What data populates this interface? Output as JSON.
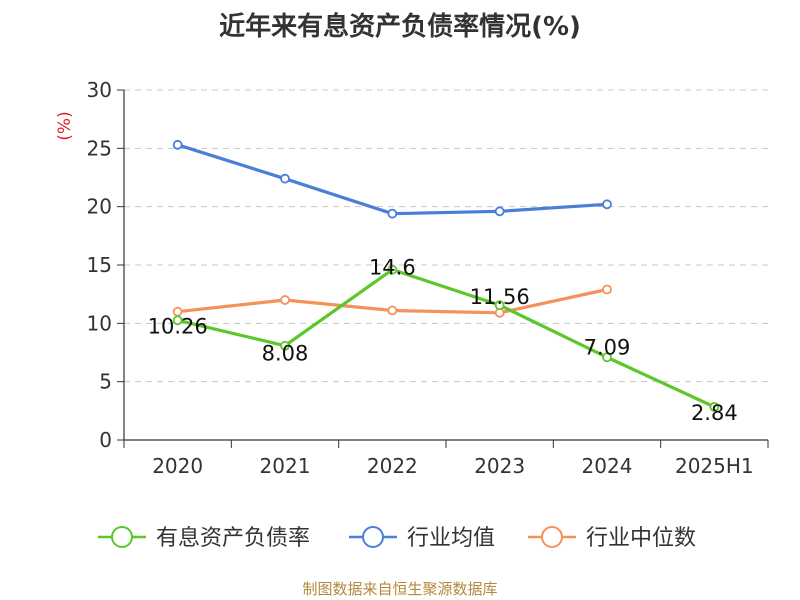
{
  "title": "近年来有息资产负债率情况(%)",
  "source": "制图数据来自恒生聚源数据库",
  "chart_data": {
    "type": "line",
    "title": "近年来有息资产负债率情况(%)",
    "ylabel": "(%)",
    "xlabel": "",
    "ylim": [
      0,
      30
    ],
    "yticks": [
      "0",
      "5",
      "10",
      "15",
      "20",
      "25",
      "30"
    ],
    "categories": [
      "2020",
      "2021",
      "2022",
      "2023",
      "2024",
      "2025H1"
    ],
    "grid": true,
    "legend_position": "bottom",
    "series": [
      {
        "name": "有息资产负债率",
        "color": "#5cc72a",
        "values": [
          10.26,
          8.08,
          14.6,
          11.56,
          7.09,
          2.84
        ],
        "labels": [
          "10.26",
          "8.08",
          "14.6",
          "11.56",
          "7.09",
          "2.84"
        ]
      },
      {
        "name": "行业均值",
        "color": "#4a7fd9",
        "values": [
          25.3,
          22.4,
          19.4,
          19.6,
          20.2,
          null
        ]
      },
      {
        "name": "行业中位数",
        "color": "#f5915a",
        "values": [
          11.0,
          12.0,
          11.1,
          10.9,
          12.9,
          null
        ]
      }
    ]
  }
}
